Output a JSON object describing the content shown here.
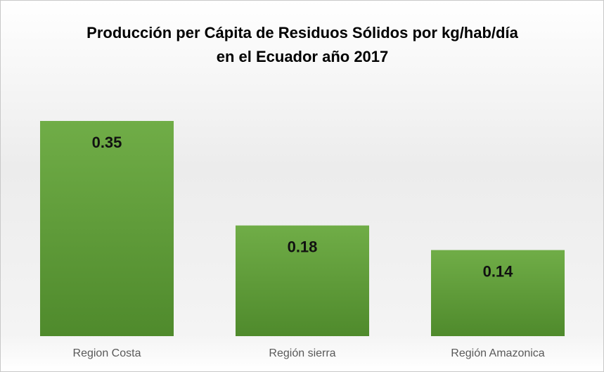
{
  "chart_data": {
    "type": "bar",
    "title": "Producción per Cápita de Residuos Sólidos por kg/hab/día en el Ecuador año 2017",
    "categories": [
      "Region Costa",
      "Región sierra",
      "Región Amazonica"
    ],
    "values": [
      0.35,
      0.18,
      0.14
    ],
    "color": "#5f9a3c"
  }
}
